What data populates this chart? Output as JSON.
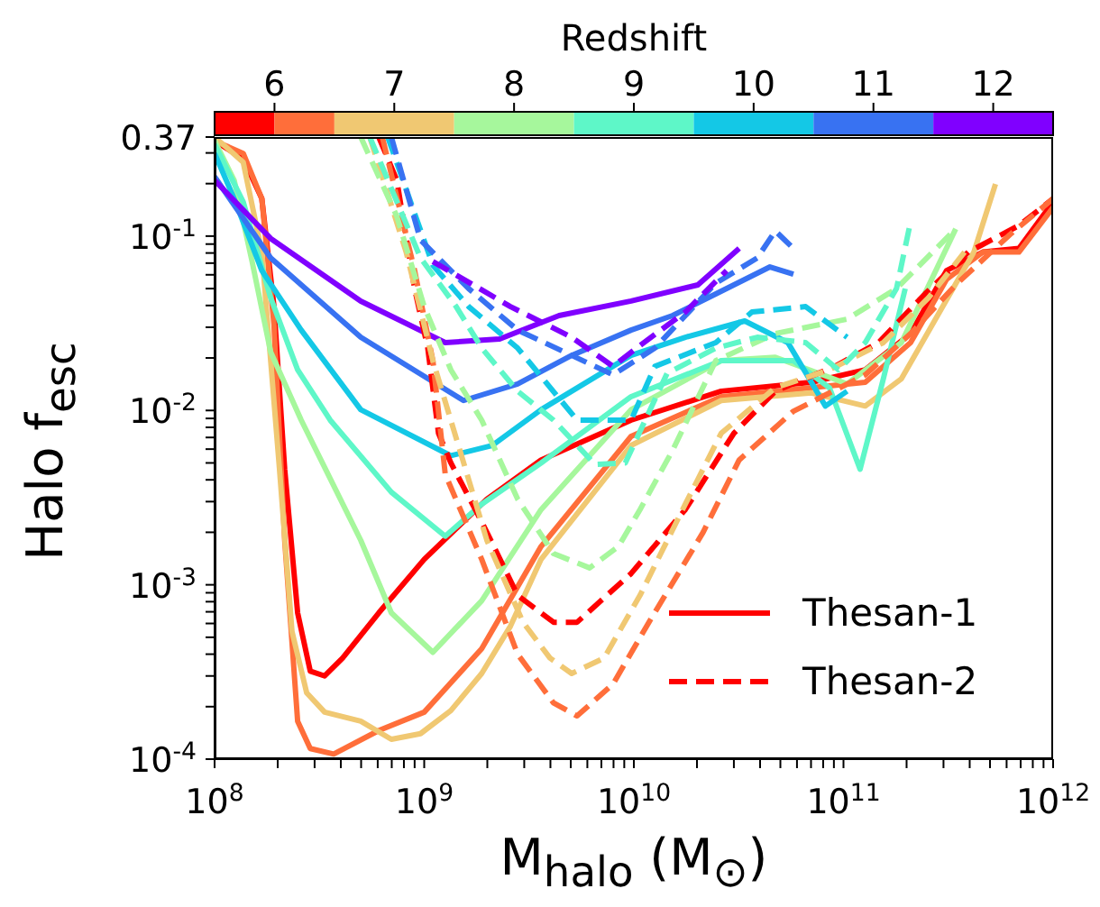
{
  "chart_data": {
    "type": "line",
    "xlabel": "M$_{halo}$ (M$_{⊙}$)",
    "ylabel": "Halo f$_{esc}$",
    "clabel": "Redshift",
    "clim": [
      5.5,
      12.5
    ],
    "cticks": [
      6,
      7,
      8,
      9,
      10,
      11,
      12
    ],
    "log": "xy",
    "grid": false,
    "marker": "none",
    "legend": "bottom right",
    "xlim": [
      100000000.0,
      1000000000000.0
    ],
    "xticks": [
      {
        "value": 100000000.0,
        "label": "10$^{8}$"
      },
      {
        "value": 200000000.0,
        "label": null
      },
      {
        "value": 300000000.0,
        "label": null
      },
      {
        "value": 400000000.0,
        "label": null
      },
      {
        "value": 500000000.0,
        "label": null
      },
      {
        "value": 600000000.0,
        "label": null
      },
      {
        "value": 700000000.0,
        "label": null
      },
      {
        "value": 800000000.0,
        "label": null
      },
      {
        "value": 900000000.0,
        "label": null
      },
      {
        "value": 1000000000.0,
        "label": "10$^{9}$"
      },
      {
        "value": 2000000000.0,
        "label": null
      },
      {
        "value": 3000000000.0,
        "label": null
      },
      {
        "value": 4000000000.0,
        "label": null
      },
      {
        "value": 5000000000.0,
        "label": null
      },
      {
        "value": 6000000000.0,
        "label": null
      },
      {
        "value": 7000000000.0,
        "label": null
      },
      {
        "value": 8000000000.0,
        "label": null
      },
      {
        "value": 9000000000.0,
        "label": null
      },
      {
        "value": 10000000000.0,
        "label": "10$^{10}$"
      },
      {
        "value": 20000000000.0,
        "label": null
      },
      {
        "value": 30000000000.0,
        "label": null
      },
      {
        "value": 40000000000.0,
        "label": null
      },
      {
        "value": 50000000000.0,
        "label": null
      },
      {
        "value": 60000000000.0,
        "label": null
      },
      {
        "value": 70000000000.0,
        "label": null
      },
      {
        "value": 80000000000.0,
        "label": null
      },
      {
        "value": 90000000000.0,
        "label": null
      },
      {
        "value": 100000000000.0,
        "label": "10$^{11}$"
      },
      {
        "value": 200000000000.0,
        "label": null
      },
      {
        "value": 300000000000.0,
        "label": null
      },
      {
        "value": 400000000000.0,
        "label": null
      },
      {
        "value": 500000000000.0,
        "label": null
      },
      {
        "value": 600000000000.0,
        "label": null
      },
      {
        "value": 700000000000.0,
        "label": null
      },
      {
        "value": 800000000000.0,
        "label": null
      },
      {
        "value": 900000000000.0,
        "label": null
      },
      {
        "value": 1000000000000.0,
        "label": "10$^{12}$"
      }
    ],
    "ylim": [
      0.0001,
      0.37
    ],
    "yticks": [
      {
        "value": 0.0001,
        "label": "10$^{-4}$"
      },
      {
        "value": 0.0002,
        "label": null
      },
      {
        "value": 0.0003,
        "label": null
      },
      {
        "value": 0.0004,
        "label": null
      },
      {
        "value": 0.0005,
        "label": null
      },
      {
        "value": 0.0006,
        "label": null
      },
      {
        "value": 0.0007,
        "label": null
      },
      {
        "value": 0.0008,
        "label": null
      },
      {
        "value": 0.0009,
        "label": null
      },
      {
        "value": 0.001,
        "label": "10$^{-3}$"
      },
      {
        "value": 0.002,
        "label": null
      },
      {
        "value": 0.003,
        "label": null
      },
      {
        "value": 0.004,
        "label": null
      },
      {
        "value": 0.005,
        "label": null
      },
      {
        "value": 0.006,
        "label": null
      },
      {
        "value": 0.007,
        "label": null
      },
      {
        "value": 0.008,
        "label": null
      },
      {
        "value": 0.009,
        "label": null
      },
      {
        "value": 0.01,
        "label": "10$^{-2}$"
      },
      {
        "value": 0.02,
        "label": null
      },
      {
        "value": 0.03,
        "label": null
      },
      {
        "value": 0.04,
        "label": null
      },
      {
        "value": 0.05,
        "label": null
      },
      {
        "value": 0.06,
        "label": null
      },
      {
        "value": 0.07,
        "label": null
      },
      {
        "value": 0.08,
        "label": null
      },
      {
        "value": 0.09,
        "label": null
      },
      {
        "value": 0.1,
        "label": "10$^{-1}$"
      },
      {
        "value": 0.2,
        "label": null
      },
      {
        "value": 0.3,
        "label": null
      },
      {
        "value": 0.37,
        "label": "0.37"
      }
    ],
    "series": [
      {
        "name": "Thesan-1",
        "color": "#ff0000",
        "line_style": "solid",
        "x": [
          100000000.0,
          137000000.0,
          168000000.0,
          192000000.0,
          216000000.0,
          249000000.0,
          286000000.0,
          335000000.0,
          408000000.0,
          607000000.0,
          1000000000.0,
          1990000000.0,
          3610000000.0,
          9700000000.0,
          26100000000.0,
          70300000000.0,
          127000000000.0,
          209000000000.0,
          310000000000.0,
          462000000000.0,
          687000000000.0,
          1000000000000.0
        ],
        "values": [
          0.352,
          0.278,
          0.164,
          0.0394,
          0.0046,
          0.00069,
          0.00032,
          0.0003,
          0.00038,
          0.00069,
          0.0014,
          0.0031,
          0.0052,
          0.0088,
          0.0129,
          0.0145,
          0.0171,
          0.0276,
          0.0634,
          0.081,
          0.085,
          0.157
        ]
      },
      {
        "color": "#ff6e3a",
        "line_style": "solid",
        "x": [
          100000000.0,
          137000000.0,
          168000000.0,
          192000000.0,
          216000000.0,
          249000000.0,
          286000000.0,
          370000000.0,
          607000000.0,
          1000000000.0,
          1880000000.0,
          3610000000.0,
          9700000000.0,
          26100000000.0,
          70300000000.0,
          127000000000.0,
          209000000000.0,
          310000000000.0,
          462000000000.0,
          687000000000.0,
          1000000000000.0
        ],
        "values": [
          0.352,
          0.298,
          0.164,
          0.031,
          0.0018,
          0.000165,
          0.000115,
          0.000107,
          0.000146,
          0.000186,
          0.00043,
          0.00166,
          0.0071,
          0.012,
          0.0135,
          0.0145,
          0.0245,
          0.0564,
          0.081,
          0.081,
          0.146
        ]
      },
      {
        "color": "#f0c872",
        "line_style": "solid",
        "x": [
          100000000.0,
          137000000.0,
          168000000.0,
          204000000.0,
          234000000.0,
          275000000.0,
          335000000.0,
          498000000.0,
          697000000.0,
          960000000.0,
          1340000000.0,
          1880000000.0,
          2580000000.0,
          3610000000.0,
          9700000000.0,
          26100000000.0,
          70300000000.0,
          127000000000.0,
          189000000000.0,
          281000000000.0,
          419000000000.0,
          531000000000.0
        ],
        "values": [
          0.37,
          0.265,
          0.081,
          0.0046,
          0.00054,
          0.00024,
          0.000186,
          0.000165,
          0.00013,
          0.00014,
          0.00019,
          0.00031,
          0.00058,
          0.0014,
          0.0063,
          0.0114,
          0.0126,
          0.0106,
          0.0152,
          0.035,
          0.081,
          0.199
        ]
      },
      {
        "color": "#a6f79c",
        "line_style": "solid",
        "x": [
          100000000.0,
          124000000.0,
          151000000.0,
          185000000.0,
          259000000.0,
          498000000.0,
          697000000.0,
          1100000000.0,
          1880000000.0,
          3610000000.0,
          9700000000.0,
          26100000000.0,
          47300000000.0,
          104000000000.0,
          189000000000.0,
          343000000000.0
        ],
        "values": [
          0.352,
          0.209,
          0.0715,
          0.0217,
          0.0088,
          0.0018,
          0.00069,
          0.00041,
          0.00081,
          0.0027,
          0.0101,
          0.0193,
          0.0202,
          0.0142,
          0.0245,
          0.11
        ]
      },
      {
        "color": "#5ef7c8",
        "line_style": "solid",
        "x": [
          100000000.0,
          137000000.0,
          185000000.0,
          249000000.0,
          356000000.0,
          697000000.0,
          1260000000.0,
          1880000000.0,
          3610000000.0,
          9700000000.0,
          26100000000.0,
          57700000000.0,
          85700000000.0,
          120000000000.0,
          155000000000.0,
          197000000000.0
        ],
        "values": [
          0.336,
          0.157,
          0.0444,
          0.0171,
          0.0088,
          0.0034,
          0.0019,
          0.0029,
          0.005,
          0.012,
          0.0193,
          0.0193,
          0.0135,
          0.0046,
          0.0152,
          0.05
        ]
      },
      {
        "color": "#14c8e6",
        "line_style": "solid",
        "x": [
          100000000.0,
          124000000.0,
          168000000.0,
          259000000.0,
          498000000.0,
          1340000000.0,
          2110000000.0,
          3610000000.0,
          9700000000.0,
          17600000000.0,
          33800000000.0,
          54300000000.0,
          82000000000.0,
          104000000000.0
        ],
        "values": [
          0.298,
          0.164,
          0.0634,
          0.0289,
          0.0101,
          0.0055,
          0.0063,
          0.0101,
          0.0207,
          0.0263,
          0.0326,
          0.0245,
          0.0106,
          0.0129
        ]
      },
      {
        "color": "#3872f2",
        "line_style": "solid",
        "x": [
          100000000.0,
          185000000.0,
          498000000.0,
          1540000000.0,
          2790000000.0,
          5050000000.0,
          9700000000.0,
          15300000000.0,
          24600000000.0,
          44600000000.0,
          57700000000.0
        ],
        "values": [
          0.219,
          0.075,
          0.0263,
          0.0114,
          0.0142,
          0.0207,
          0.0289,
          0.035,
          0.0466,
          0.0666,
          0.0605
        ]
      },
      {
        "color": "#8000ff",
        "line_style": "solid",
        "x": [
          100000000.0,
          185000000.0,
          498000000.0,
          1260000000.0,
          2290000000.0,
          4400000000.0,
          9700000000.0,
          20200000000.0,
          31800000000.0
        ],
        "values": [
          0.209,
          0.097,
          0.0424,
          0.0245,
          0.0257,
          0.035,
          0.0424,
          0.0525,
          0.085
        ]
      },
      {
        "name": "Thesan-2",
        "color": "#ff0000",
        "line_style": "dashed",
        "x": [
          607000000.0,
          740000000.0,
          900000000.0,
          1040000000.0,
          1170000000.0,
          1340000000.0,
          1880000000.0,
          2790000000.0,
          4140000000.0,
          5360000000.0,
          9700000000.0,
          17600000000.0,
          30000000000.0,
          47300000000.0,
          91000000000.0,
          147000000000.0,
          245000000000.0,
          394000000000.0,
          687000000000.0,
          1000000000000.0
        ],
        "values": [
          0.37,
          0.209,
          0.05,
          0.0228,
          0.0074,
          0.005,
          0.0023,
          0.00087,
          0.00061,
          0.00061,
          0.00116,
          0.0027,
          0.0074,
          0.0129,
          0.0179,
          0.0245,
          0.0466,
          0.081,
          0.115,
          0.164
        ]
      },
      {
        "color": "#ff6e3a",
        "line_style": "dashed",
        "x": [
          631000000.0,
          900000000.0,
          1100000000.0,
          1260000000.0,
          1880000000.0,
          2790000000.0,
          4140000000.0,
          5360000000.0,
          7960000000.0,
          11800000000.0,
          21400000000.0,
          31800000000.0,
          57700000000.0,
          127000000000.0,
          209000000000.0,
          343000000000.0,
          622000000000.0,
          1000000000000.0
        ],
        "values": [
          0.37,
          0.0634,
          0.0193,
          0.0043,
          0.0014,
          0.0004,
          0.00021,
          0.000177,
          0.00027,
          0.00061,
          0.002,
          0.0052,
          0.0099,
          0.016,
          0.0276,
          0.0525,
          0.102,
          0.164
        ]
      },
      {
        "color": "#f0c872",
        "line_style": "dashed",
        "x": [
          550000000.0,
          820000000.0,
          1100000000.0,
          1480000000.0,
          1990000000.0,
          2960000000.0,
          3980000000.0,
          5050000000.0,
          7210000000.0,
          10700000000.0,
          17600000000.0,
          26100000000.0,
          47300000000.0,
          85700000000.0,
          155000000000.0,
          255000000000.0,
          378000000000.0
        ],
        "values": [
          0.37,
          0.081,
          0.0193,
          0.0059,
          0.0018,
          0.00061,
          0.00038,
          0.00031,
          0.00038,
          0.00087,
          0.0029,
          0.0074,
          0.0135,
          0.0171,
          0.0245,
          0.0444,
          0.081
        ]
      },
      {
        "color": "#a6f79c",
        "line_style": "dashed",
        "x": [
          498000000.0,
          740000000.0,
          1000000000.0,
          1340000000.0,
          1880000000.0,
          2790000000.0,
          4140000000.0,
          6150000000.0,
          8450000000.0,
          10700000000.0,
          15300000000.0,
          24600000000.0,
          47300000000.0,
          104000000000.0,
          179000000000.0,
          343000000000.0
        ],
        "values": [
          0.37,
          0.13,
          0.0394,
          0.0171,
          0.0088,
          0.0031,
          0.00151,
          0.00125,
          0.00166,
          0.0027,
          0.0059,
          0.0193,
          0.0276,
          0.0334,
          0.05,
          0.11
        ]
      },
      {
        "color": "#5ef7c8",
        "line_style": "dashed",
        "x": [
          550000000.0,
          960000000.0,
          1420000000.0,
          1880000000.0,
          2790000000.0,
          4140000000.0,
          6530000000.0,
          9100000000.0,
          14400000000.0,
          24600000000.0,
          38800000000.0,
          66000000000.0,
          94600000000.0,
          127000000000.0,
          179000000000.0,
          209000000000.0
        ],
        "values": [
          0.37,
          0.075,
          0.0394,
          0.0228,
          0.0129,
          0.0088,
          0.0049,
          0.005,
          0.0163,
          0.0228,
          0.0263,
          0.0245,
          0.0171,
          0.0245,
          0.05,
          0.121
        ]
      },
      {
        "color": "#14c8e6",
        "line_style": "dashed",
        "x": [
          670000000.0,
          1100000000.0,
          1630000000.0,
          2790000000.0,
          5360000000.0,
          9700000000.0,
          12600000000.0,
          24600000000.0,
          36600000000.0,
          66000000000.0,
          104000000000.0
        ],
        "values": [
          0.37,
          0.068,
          0.0394,
          0.0228,
          0.0088,
          0.0088,
          0.0179,
          0.0245,
          0.0367,
          0.0394,
          0.0263
        ]
      },
      {
        "color": "#3872f2",
        "line_style": "dashed",
        "x": [
          697000000.0,
          960000000.0,
          1630000000.0,
          2790000000.0,
          5050000000.0,
          7960000000.0,
          12600000000.0,
          24600000000.0,
          38800000000.0,
          47300000000.0,
          57700000000.0
        ],
        "values": [
          0.37,
          0.095,
          0.05,
          0.0289,
          0.0207,
          0.016,
          0.0228,
          0.0537,
          0.075,
          0.107,
          0.085
        ]
      },
      {
        "color": "#8000ff",
        "line_style": "dashed",
        "x": [
          1100000000.0,
          2580000000.0,
          5050000000.0,
          7960000000.0,
          10300000000.0,
          17600000000.0,
          27700000000.0
        ],
        "values": [
          0.0715,
          0.0394,
          0.0263,
          0.0179,
          0.0228,
          0.0367,
          0.0634
        ]
      }
    ]
  }
}
